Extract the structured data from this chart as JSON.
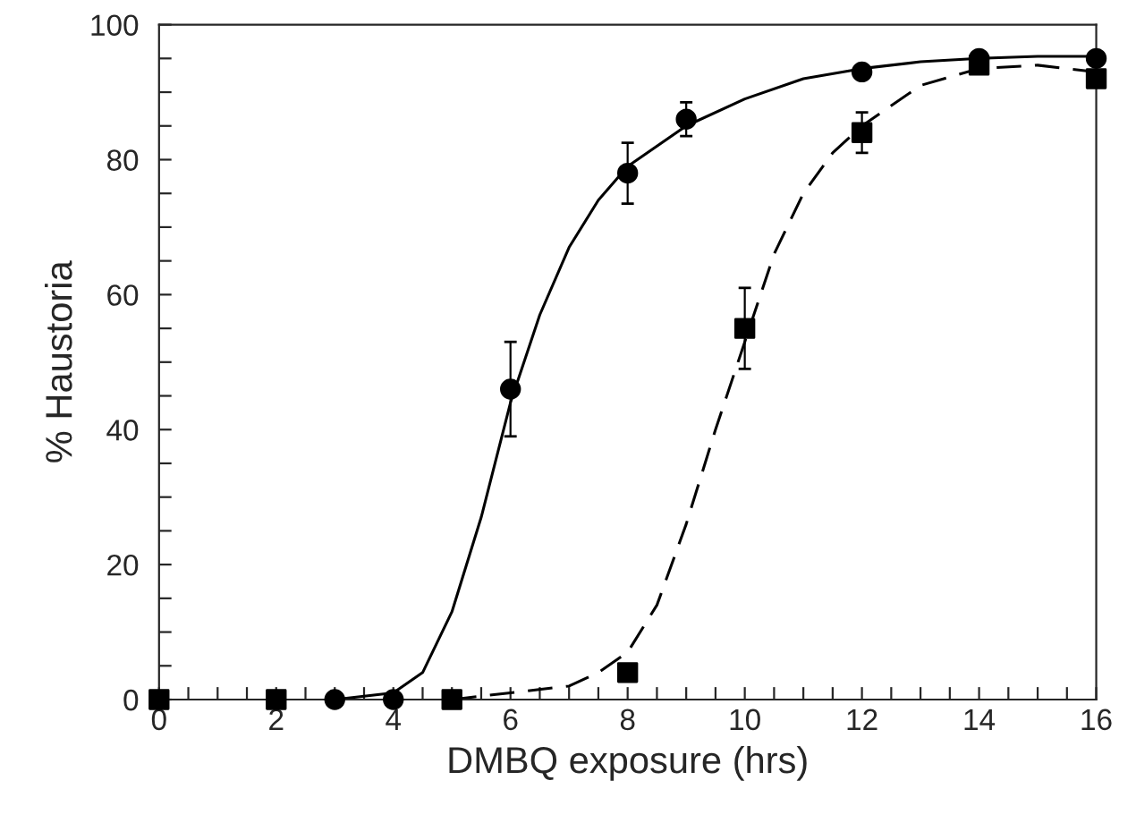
{
  "chart_data": {
    "type": "scatter",
    "xlabel": "DMBQ exposure (hrs)",
    "ylabel": "% Haustoria",
    "xlim": [
      0,
      16
    ],
    "ylim": [
      0,
      100
    ],
    "xticks": [
      0,
      {
        "value": 0.5,
        "label": null
      },
      {
        "value": 1,
        "label": null
      },
      {
        "value": 1.5,
        "label": null
      },
      2,
      {
        "value": 2.5,
        "label": null
      },
      {
        "value": 3,
        "label": null
      },
      {
        "value": 3.5,
        "label": null
      },
      4,
      {
        "value": 4.5,
        "label": null
      },
      {
        "value": 5,
        "label": null
      },
      {
        "value": 5.5,
        "label": null
      },
      6,
      {
        "value": 6.5,
        "label": null
      },
      {
        "value": 7,
        "label": null
      },
      {
        "value": 7.5,
        "label": null
      },
      8,
      {
        "value": 8.5,
        "label": null
      },
      {
        "value": 9,
        "label": null
      },
      {
        "value": 9.5,
        "label": null
      },
      10,
      {
        "value": 10.5,
        "label": null
      },
      {
        "value": 11,
        "label": null
      },
      {
        "value": 11.5,
        "label": null
      },
      12,
      {
        "value": 12.5,
        "label": null
      },
      {
        "value": 13,
        "label": null
      },
      {
        "value": 13.5,
        "label": null
      },
      14,
      {
        "value": 14.5,
        "label": null
      },
      {
        "value": 15,
        "label": null
      },
      {
        "value": 15.5,
        "label": null
      },
      16
    ],
    "yticks": [
      0,
      {
        "value": 5,
        "label": null
      },
      {
        "value": 10,
        "label": null
      },
      {
        "value": 15,
        "label": null
      },
      20,
      {
        "value": 25,
        "label": null
      },
      {
        "value": 30,
        "label": null
      },
      {
        "value": 35,
        "label": null
      },
      40,
      {
        "value": 45,
        "label": null
      },
      {
        "value": 50,
        "label": null
      },
      {
        "value": 55,
        "label": null
      },
      60,
      {
        "value": 65,
        "label": null
      },
      {
        "value": 70,
        "label": null
      },
      {
        "value": 75,
        "label": null
      },
      80,
      {
        "value": 85,
        "label": null
      },
      {
        "value": 90,
        "label": null
      },
      {
        "value": 95,
        "label": null
      },
      100
    ],
    "grid": false,
    "legend": false,
    "series": [
      {
        "type": "line",
        "color": "#000000",
        "marker": "none",
        "line_style": "solid",
        "x": [
          3,
          4,
          4.5,
          5,
          5.5,
          6,
          6.5,
          7,
          7.5,
          8,
          9,
          10,
          11,
          12,
          13,
          14,
          15,
          16
        ],
        "values": [
          0,
          1,
          4,
          13,
          27,
          44,
          57,
          67,
          74,
          79,
          85,
          89,
          92,
          93.5,
          94.5,
          95,
          95.3,
          95.3
        ]
      },
      {
        "type": "line",
        "color": "#000000",
        "marker": "none",
        "line_style": "dashed",
        "x": [
          5,
          6,
          7,
          7.5,
          8,
          8.5,
          9,
          9.5,
          10,
          10.5,
          11,
          11.5,
          12,
          13,
          14,
          15,
          16
        ],
        "values": [
          0,
          1,
          2,
          4,
          7,
          14,
          26,
          40,
          53,
          66,
          75,
          81,
          85,
          91,
          93.5,
          94,
          93
        ]
      },
      {
        "color": "#000000",
        "marker": "circle",
        "x": [
          3,
          4,
          6,
          8,
          9,
          12,
          14,
          16
        ],
        "values": [
          0,
          0,
          46,
          78,
          86,
          93,
          95,
          95
        ],
        "errors": [
          null,
          null,
          7,
          4.5,
          2.5,
          null,
          null,
          null
        ]
      },
      {
        "color": "#000000",
        "marker": "square",
        "x": [
          0,
          2,
          5,
          8,
          10,
          12,
          14,
          16
        ],
        "values": [
          0,
          0,
          0,
          4,
          55,
          84,
          94,
          92
        ],
        "errors": [
          null,
          null,
          null,
          null,
          6,
          3,
          null,
          null
        ]
      }
    ]
  }
}
